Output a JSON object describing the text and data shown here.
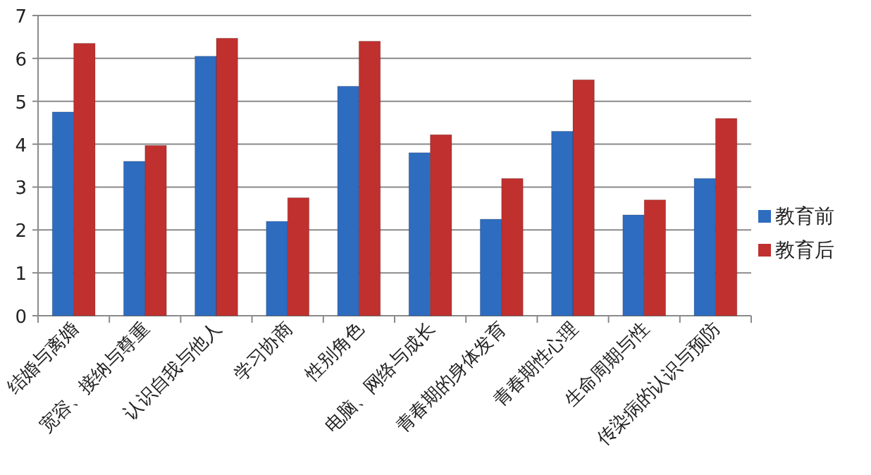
{
  "chart_data": {
    "type": "bar",
    "categories": [
      "结婚与离婚",
      "宽容、接纳与尊重",
      "认识自我与他人",
      "学习协商",
      "性别角色",
      "电脑、网络与成长",
      "青春期的身体发育",
      "青春期性心理",
      "生命周期与性",
      "传染病的认识与预防"
    ],
    "series": [
      {
        "name": "教育前",
        "color": "#2e6cc0",
        "values": [
          4.75,
          3.6,
          6.05,
          2.2,
          5.35,
          3.8,
          2.25,
          4.3,
          2.35,
          3.2
        ]
      },
      {
        "name": "教育后",
        "color": "#c0302e",
        "values": [
          6.35,
          3.97,
          6.47,
          2.75,
          6.4,
          4.22,
          3.2,
          5.5,
          2.7,
          4.6
        ]
      }
    ],
    "ylim": [
      0,
      7
    ],
    "yticks": [
      0,
      1,
      2,
      3,
      4,
      5,
      6,
      7
    ],
    "grid": "y",
    "legend": "right"
  }
}
